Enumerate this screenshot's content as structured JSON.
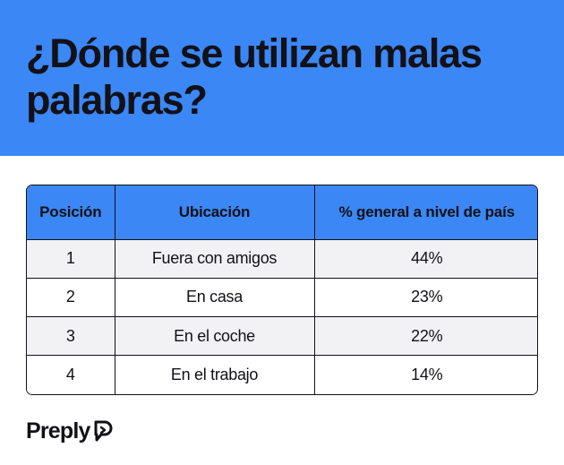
{
  "header": {
    "title": "¿Dónde se utilizan malas palabras?",
    "background_color": "#3b87f5"
  },
  "table": {
    "columns": [
      "Posición",
      "Ubicación",
      "% general a nivel de país"
    ],
    "rows": [
      [
        "1",
        "Fuera con amigos",
        "44%"
      ],
      [
        "2",
        "En casa",
        "23%"
      ],
      [
        "3",
        "En el coche",
        "22%"
      ],
      [
        "4",
        "En el trabajo",
        "14%"
      ]
    ]
  },
  "footer": {
    "brand": "Preply",
    "brand_icon": "preply-logo-icon"
  }
}
